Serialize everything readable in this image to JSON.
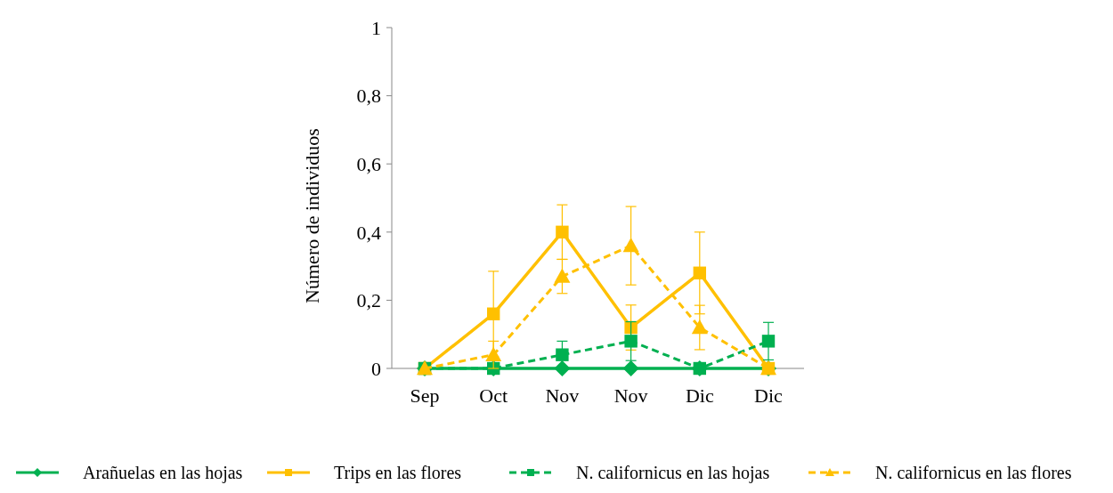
{
  "chart_data": {
    "type": "line",
    "ylabel": "Número de individuos",
    "categories": [
      "Sep",
      "Oct",
      "Nov",
      "Nov",
      "Dic",
      "Dic"
    ],
    "ylim": [
      0,
      1
    ],
    "yticks": [
      0,
      {
        "value": 0.2,
        "label": "0,2"
      },
      {
        "value": 0.4,
        "label": "0,4"
      },
      {
        "value": 0.6,
        "label": "0,6"
      },
      {
        "value": 0.8,
        "label": "0,8"
      },
      1
    ],
    "grid": false,
    "legend": "bottom",
    "series": [
      {
        "name": "Arañuelas en las hojas",
        "color": "#00b050",
        "marker": "diamond",
        "line_style": "solid",
        "values": [
          0,
          0,
          0,
          0,
          0,
          0
        ]
      },
      {
        "name": "Trips en las flores",
        "color": "#ffc000",
        "marker": "square",
        "line_style": "solid",
        "values": [
          0,
          0.16,
          0.4,
          0.12,
          0.28,
          0
        ],
        "errors": [
          null,
          0.125,
          0.08,
          0.066,
          0.12,
          null
        ]
      },
      {
        "name": "N. californicus en las hojas",
        "color": "#00b050",
        "marker": "square",
        "line_style": "dashed",
        "values": [
          0,
          0,
          0.04,
          0.08,
          0,
          0.08
        ],
        "errors": [
          null,
          null,
          0.04,
          0.057,
          null,
          0.055
        ]
      },
      {
        "name": "N. californicus en las flores",
        "color": "#ffc000",
        "marker": "triangle",
        "line_style": "dashed",
        "values": [
          0,
          0.04,
          0.27,
          0.36,
          0.12,
          0
        ],
        "errors": [
          null,
          0.04,
          0.05,
          0.115,
          0.065,
          null
        ]
      }
    ]
  }
}
